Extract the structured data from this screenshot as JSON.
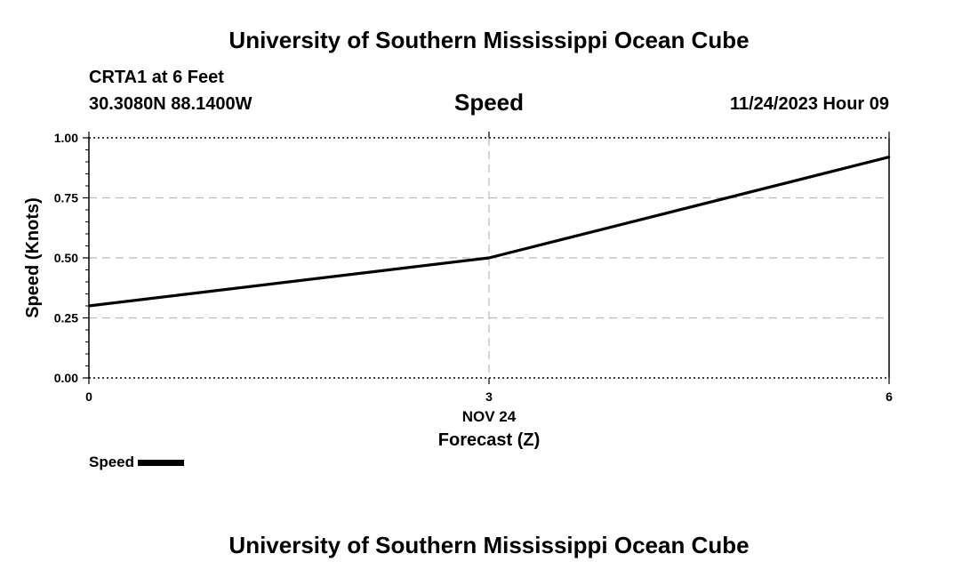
{
  "header": {
    "title": "University of Southern Mississippi Ocean Cube",
    "station": "CRTA1 at 6 Feet",
    "coords": "30.3080N  88.1400W",
    "datetime": "11/24/2023 Hour 09"
  },
  "footer": {
    "title": "University of Southern Mississippi Ocean Cube"
  },
  "legend": {
    "label": "Speed"
  },
  "chart_data": {
    "type": "line",
    "title": "Speed",
    "xlabel": "Forecast (Z)",
    "ylabel": "Speed (Knots)",
    "x_date_label": "NOV 24",
    "xlim": [
      0,
      6
    ],
    "ylim": [
      0,
      1.0
    ],
    "x_ticks": [
      0,
      3,
      6
    ],
    "x_tick_labels": [
      "0",
      "3",
      "6"
    ],
    "y_ticks": [
      0,
      0.25,
      0.5,
      0.75,
      1.0
    ],
    "y_tick_labels": [
      "0.00",
      "0.25",
      "0.50",
      "0.75",
      "1.00"
    ],
    "grid": true,
    "series": [
      {
        "name": "Speed",
        "x": [
          0,
          3,
          6
        ],
        "values": [
          0.3,
          0.5,
          0.92
        ],
        "color": "#000000"
      }
    ]
  }
}
